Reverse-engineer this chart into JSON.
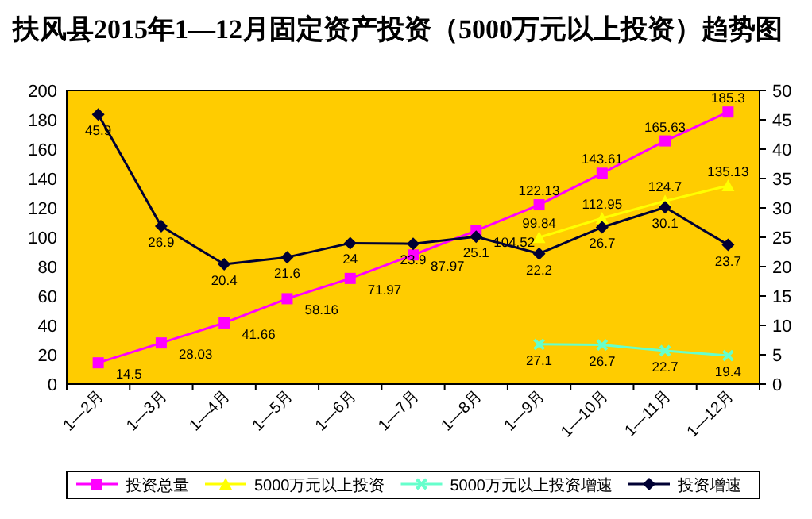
{
  "chart_data": {
    "type": "line",
    "title": "扶风县2015年1—12月固定资产投资（5000万元以上投资）趋势图",
    "categories": [
      "1—2月",
      "1—3月",
      "1—4月",
      "1—5月",
      "1—6月",
      "1—7月",
      "1—8月",
      "1—9月",
      "1—10月",
      "1—11月",
      "1—12月"
    ],
    "series": [
      {
        "name": "投资总量",
        "color": "#ff00ff",
        "marker": "square",
        "values": [
          14.5,
          28.03,
          41.66,
          58.16,
          71.97,
          87.97,
          104.52,
          122.13,
          143.61,
          165.63,
          185.3
        ]
      },
      {
        "name": "5000万元以上投资",
        "color": "#ffff00",
        "marker": "triangle",
        "values": [
          null,
          null,
          null,
          null,
          null,
          null,
          null,
          99.84,
          112.95,
          124.7,
          135.13
        ]
      },
      {
        "name": "5000万元以上投资增速",
        "color": "#66ffcc",
        "marker": "cross",
        "values": [
          null,
          null,
          null,
          null,
          null,
          null,
          null,
          27.1,
          26.7,
          22.7,
          19.4
        ]
      },
      {
        "name": "投资增速",
        "color": "#000033",
        "marker": "diamond",
        "axis": "y2",
        "values": [
          45.9,
          26.9,
          20.4,
          21.6,
          24,
          23.9,
          25.1,
          22.2,
          26.7,
          30.1,
          23.7
        ]
      }
    ],
    "ylim": [
      0,
      200
    ],
    "yticks": [
      0,
      20,
      40,
      60,
      80,
      100,
      120,
      140,
      160,
      180,
      200
    ],
    "y2lim": [
      0,
      50
    ],
    "y2ticks": [
      0,
      5,
      10,
      15,
      20,
      25,
      30,
      35,
      40,
      45,
      50
    ],
    "data_labels": true,
    "legend": "bottom",
    "grid": false
  }
}
